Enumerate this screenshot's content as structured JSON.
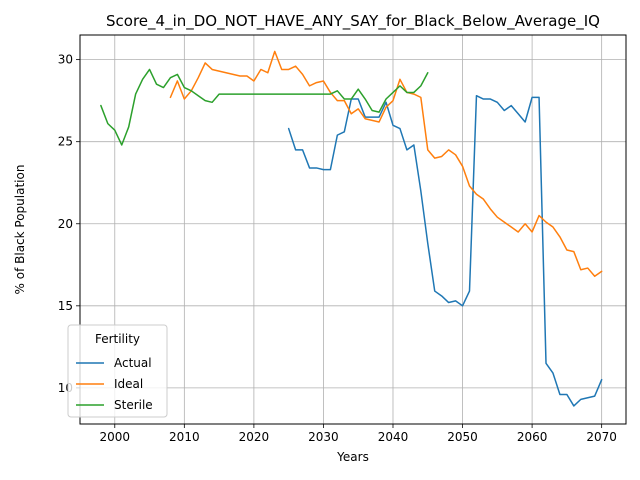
{
  "chart_data": {
    "type": "line",
    "title": "Score_4_in_DO_NOT_HAVE_ANY_SAY_for_Black_Below_Average_IQ",
    "xlabel": "Years",
    "ylabel": "% of Black Population",
    "xlim": [
      1995,
      2073.5
    ],
    "ylim": [
      7.8,
      31.5
    ],
    "xticks": [
      2000,
      2010,
      2020,
      2030,
      2040,
      2050,
      2060,
      2070
    ],
    "yticks": [
      10,
      15,
      20,
      25,
      30
    ],
    "grid": true,
    "legend": {
      "title": "Fertility",
      "placement": "lower-left"
    },
    "series": [
      {
        "name": "Actual",
        "color": "#1f77b4",
        "x": [
          2025,
          2026,
          2027,
          2028,
          2029,
          2030,
          2031,
          2032,
          2033,
          2034,
          2035,
          2036,
          2037,
          2038,
          2039,
          2040,
          2041,
          2042,
          2043,
          2044,
          2045,
          2046,
          2047,
          2048,
          2049,
          2050,
          2051,
          2052,
          2053,
          2054,
          2055,
          2056,
          2057,
          2058,
          2059,
          2060,
          2061,
          2062,
          2063,
          2064,
          2065,
          2066,
          2067,
          2068,
          2069,
          2070
        ],
        "y": [
          25.8,
          24.5,
          24.5,
          23.4,
          23.4,
          23.3,
          23.3,
          25.4,
          25.6,
          27.6,
          27.6,
          26.5,
          26.5,
          26.5,
          27.4,
          26.0,
          25.8,
          24.5,
          24.8,
          22.0,
          18.8,
          15.9,
          15.6,
          15.2,
          15.3,
          15.0,
          15.9,
          27.8,
          27.6,
          27.6,
          27.4,
          26.9,
          27.2,
          26.7,
          26.2,
          27.7,
          27.7,
          11.5,
          10.9,
          9.6,
          9.6,
          8.9,
          9.3,
          9.4,
          9.5,
          10.5
        ]
      },
      {
        "name": "Ideal",
        "color": "#ff7f0e",
        "x": [
          2008,
          2009,
          2010,
          2011,
          2012,
          2013,
          2014,
          2015,
          2016,
          2017,
          2018,
          2019,
          2020,
          2021,
          2022,
          2023,
          2024,
          2025,
          2026,
          2027,
          2028,
          2029,
          2030,
          2031,
          2032,
          2033,
          2034,
          2035,
          2036,
          2037,
          2038,
          2039,
          2040,
          2041,
          2042,
          2043,
          2044,
          2045,
          2046,
          2047,
          2048,
          2049,
          2050,
          2051,
          2052,
          2053,
          2054,
          2055,
          2056,
          2057,
          2058,
          2059,
          2060,
          2061,
          2062,
          2063,
          2064,
          2065,
          2066,
          2067,
          2068,
          2069,
          2070
        ],
        "y": [
          27.7,
          28.7,
          27.6,
          28.1,
          28.9,
          29.8,
          29.4,
          29.3,
          29.2,
          29.1,
          29.0,
          29.0,
          28.7,
          29.4,
          29.2,
          30.5,
          29.4,
          29.4,
          29.6,
          29.1,
          28.4,
          28.6,
          28.7,
          28.0,
          27.5,
          27.5,
          26.7,
          27.0,
          26.4,
          26.3,
          26.2,
          27.1,
          27.5,
          28.8,
          28.0,
          27.9,
          27.7,
          24.5,
          24.0,
          24.1,
          24.5,
          24.2,
          23.5,
          22.3,
          21.8,
          21.5,
          20.9,
          20.4,
          20.1,
          19.8,
          19.5,
          20.0,
          19.5,
          20.5,
          20.1,
          19.8,
          19.2,
          18.4,
          18.3,
          17.2,
          17.3,
          16.8,
          17.1
        ]
      },
      {
        "name": "Sterile",
        "color": "#2ca02c",
        "x": [
          1998,
          1999,
          2000,
          2001,
          2002,
          2003,
          2004,
          2005,
          2006,
          2007,
          2008,
          2009,
          2010,
          2011,
          2012,
          2013,
          2014,
          2015,
          2016,
          2017,
          2018,
          2019,
          2020,
          2021,
          2022,
          2023,
          2024,
          2025,
          2026,
          2027,
          2028,
          2029,
          2030,
          2031,
          2032,
          2033,
          2034,
          2035,
          2036,
          2037,
          2038,
          2039,
          2040,
          2041,
          2042,
          2043,
          2044,
          2045
        ],
        "y": [
          27.2,
          26.1,
          25.7,
          24.8,
          25.9,
          27.9,
          28.8,
          29.4,
          28.5,
          28.3,
          28.9,
          29.1,
          28.3,
          28.1,
          27.8,
          27.5,
          27.4,
          27.9,
          27.9,
          27.9,
          27.9,
          27.9,
          27.9,
          27.9,
          27.9,
          27.9,
          27.9,
          27.9,
          27.9,
          27.9,
          27.9,
          27.9,
          27.9,
          27.9,
          28.1,
          27.6,
          27.6,
          28.2,
          27.6,
          26.9,
          26.8,
          27.6,
          28.0,
          28.4,
          28.0,
          28.0,
          28.4,
          29.2
        ]
      }
    ]
  }
}
